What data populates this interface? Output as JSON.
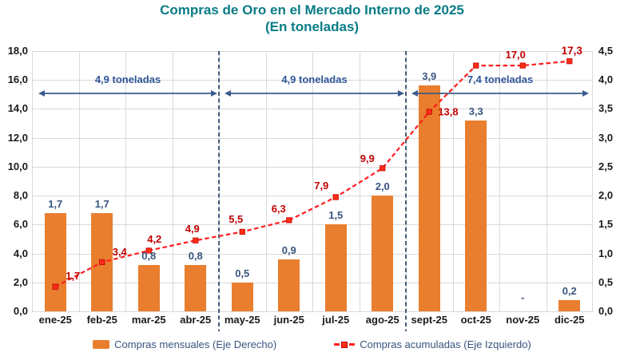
{
  "title": "Compras de Oro en el Mercado Interno de 2025",
  "subtitle": "(En toneladas)",
  "colors": {
    "title_teal": "#0A7C85",
    "bar_orange": "#E87E2E",
    "line_red": "#FF1D1D",
    "marker_red_fill": "#FF2D16",
    "marker_red_stroke": "#C00000",
    "line_label_red": "#C00000",
    "bar_label_navy": "#39557F",
    "annotation_blue": "#2F5597",
    "arrow_blue": "#3A5B8C",
    "separator_navy": "#17375E",
    "grid_gray": "#D9D9D9",
    "axis_text": "#1A1A1A"
  },
  "chart_data": {
    "type": "combo (bar + line)",
    "title": "Compras de Oro en el Mercado Interno de 2025",
    "subtitle": "(En toneladas)",
    "grid": true,
    "legend_position": "bottom",
    "categories": [
      "ene-25",
      "feb-25",
      "mar-25",
      "abr-25",
      "may-25",
      "jun-25",
      "jul-25",
      "ago-25",
      "sept-25",
      "oct-25",
      "nov-25",
      "dic-25"
    ],
    "series": [
      {
        "name": "Compras mensuales (Eje Derecho)",
        "type": "bar",
        "axis": "right",
        "values": [
          1.7,
          1.7,
          0.8,
          0.8,
          0.5,
          0.9,
          1.5,
          2.0,
          3.9,
          3.3,
          null,
          0.2
        ],
        "labels": [
          "1,7",
          "1,7",
          "0,8",
          "0,8",
          "0,5",
          "0,9",
          "1,5",
          "2,0",
          "3,9",
          "3,3",
          "-",
          "0,2"
        ]
      },
      {
        "name": "Compras acumuladas (Eje Izquierdo)",
        "type": "line",
        "axis": "left",
        "values": [
          1.7,
          3.4,
          4.2,
          4.9,
          5.5,
          6.3,
          7.9,
          9.9,
          13.8,
          17.0,
          17.0,
          17.3
        ],
        "labels": [
          "1,7",
          "3,4",
          "4,2",
          "4,9",
          "5,5",
          "6,3",
          "7,9",
          "9,9",
          "13,8",
          "",
          "17,0",
          "17,3"
        ]
      }
    ],
    "left_axis": {
      "min": 0,
      "max": 18,
      "step": 2,
      "ticks": [
        "18,0",
        "16,0",
        "14,0",
        "12,0",
        "10,0",
        "8,0",
        "6,0",
        "4,0",
        "2,0",
        "0,0"
      ]
    },
    "right_axis": {
      "min": 0,
      "max": 4.5,
      "step": 0.5,
      "ticks": [
        "4,5",
        "4,0",
        "3,5",
        "3,0",
        "2,5",
        "2,0",
        "1,5",
        "1,0",
        "0,5",
        "0,0"
      ]
    },
    "annotations": [
      {
        "text": "4,9 toneladas",
        "from_index": 0,
        "to_index": 3
      },
      {
        "text": "4,9 toneladas",
        "from_index": 4,
        "to_index": 7
      },
      {
        "text": "7,4 toneladas",
        "from_index": 8,
        "to_index": 11
      }
    ],
    "separators_after_index": [
      3,
      7
    ]
  }
}
